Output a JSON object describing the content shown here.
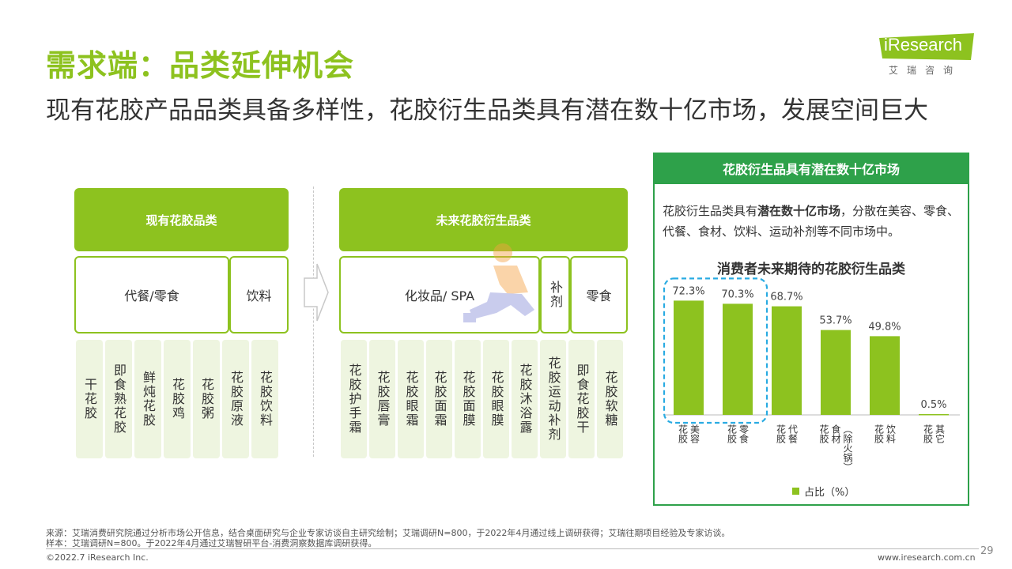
{
  "title": "需求端：品类延伸机会",
  "subtitle": "现有花胶产品品类具备多样性，花胶衍生品类具有潜在数十亿市场，发展空间巨大",
  "logo": {
    "brand": "iResearch",
    "cn": "艾瑞咨询"
  },
  "left": {
    "header": "现有花胶品类",
    "groups": [
      "代餐/零食",
      "饮料"
    ],
    "items": [
      "干花胶",
      "即食熟花胶",
      "鲜炖花胶",
      "花胶鸡",
      "花胶粥",
      "花胶原液",
      "花胶饮料"
    ]
  },
  "right": {
    "header": "未来花胶衍生品类",
    "groups": [
      "化妆品/ SPA",
      "补剂",
      "零食"
    ],
    "items": [
      "花胶护手霜",
      "花胶唇膏",
      "花胶眼霜",
      "花胶面霜",
      "花胶面膜",
      "花胶眼膜",
      "花胶沐浴露",
      "花胶运动补剂",
      "即食花胶干",
      "花胶软糖"
    ]
  },
  "panel": {
    "header": "花胶衍生品具有潜在数十亿市场",
    "desc_prefix": "花胶衍生品类具有",
    "desc_bold": "潜在数十亿市场",
    "desc_suffix": "，分散在美容、零食、代餐、食材、饮料、运动补剂等不同市场中。",
    "chart_title": "消费者未来期待的花胶衍生品类",
    "legend": "占比（%）"
  },
  "chart_data": {
    "type": "bar",
    "title": "消费者未来期待的花胶衍生品类",
    "categories": [
      "花胶-美容",
      "花胶-零食",
      "花胶-代餐",
      "花胶-食材（除火锅）",
      "花胶-饮料",
      "花胶-其它"
    ],
    "category_lines": [
      [
        "花胶",
        "美容"
      ],
      [
        "花胶",
        "零食"
      ],
      [
        "花胶",
        "代餐"
      ],
      [
        "花胶",
        "食材",
        "（除火锅）"
      ],
      [
        "花胶",
        "饮料"
      ],
      [
        "花胶",
        "其它"
      ]
    ],
    "series": [
      {
        "name": "占比（%）",
        "values": [
          72.3,
          70.3,
          68.7,
          53.7,
          49.8,
          0.5
        ]
      }
    ],
    "value_labels": [
      "72.3%",
      "70.3%",
      "68.7%",
      "53.7%",
      "49.8%",
      "0.5%"
    ],
    "highlight": [
      0,
      1
    ],
    "ylim": [
      0,
      80
    ],
    "color": "#8dc21f",
    "highlight_color": "#29abe2"
  },
  "footer": {
    "source": "来源：艾瑞消费研究院通过分析市场公开信息，结合桌面研究与企业专家访谈自主研究绘制；艾瑞调研N=800，于2022年4月通过线上调研获得；艾瑞往期项目经验及专家访谈。",
    "sample": "样本：艾瑞调研N=800。于2022年4月通过艾瑞智研平台-消费洞察数据库调研获得。",
    "copyright": "©2022.7 iResearch Inc.",
    "url": "www.iresearch.com.cn",
    "page": "29"
  }
}
